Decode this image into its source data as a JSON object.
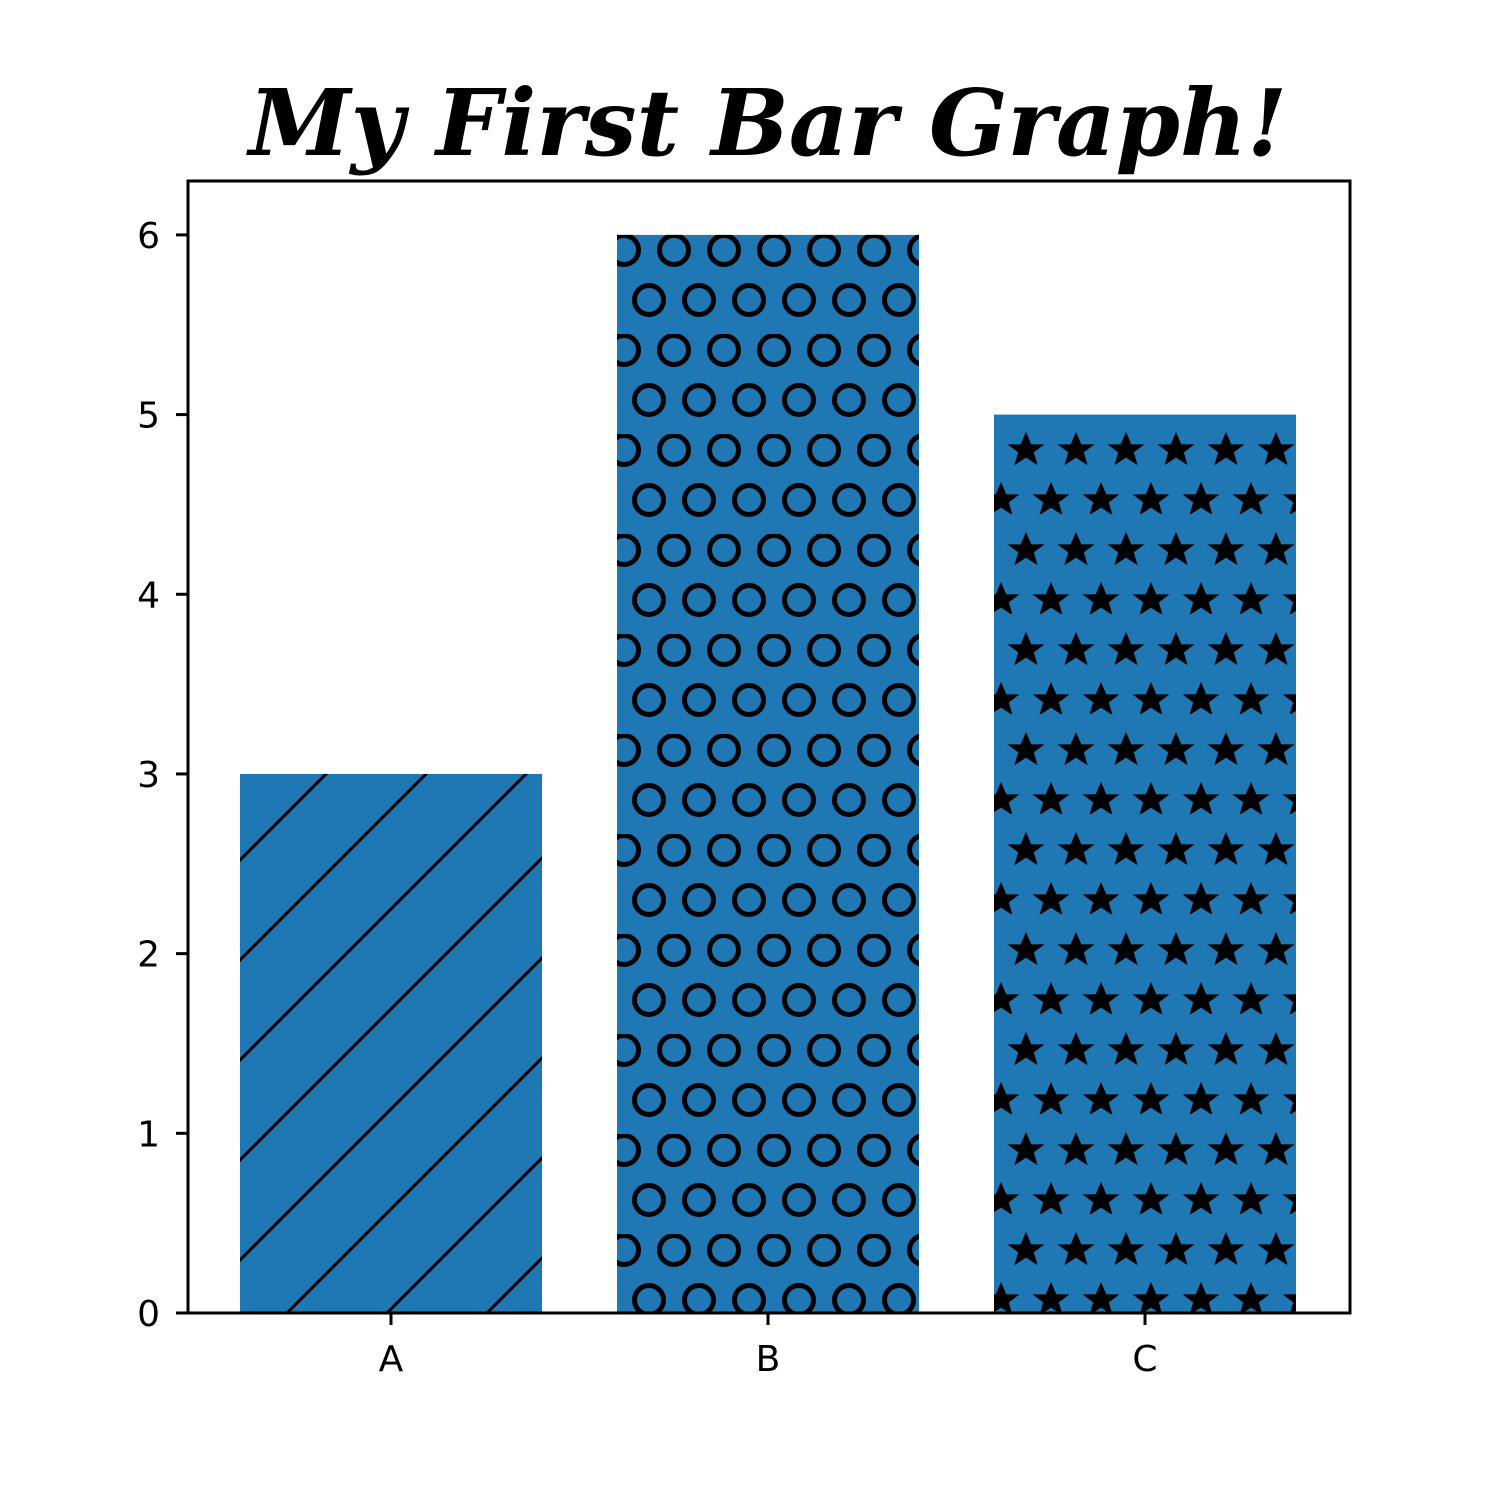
{
  "chart_data": {
    "type": "bar",
    "title": "My First Bar Graph!",
    "categories": [
      "A",
      "B",
      "C"
    ],
    "values": [
      3,
      6,
      5
    ],
    "xlabel": "",
    "ylabel": "",
    "ylim": [
      0,
      6.3
    ],
    "yticks": [
      0,
      1,
      2,
      3,
      4,
      5,
      6
    ],
    "grid": false,
    "bar_color": "#1f77b4",
    "hatch_patterns": [
      "diagonal-lines",
      "circles",
      "stars"
    ],
    "hatch_color": "#000000"
  }
}
